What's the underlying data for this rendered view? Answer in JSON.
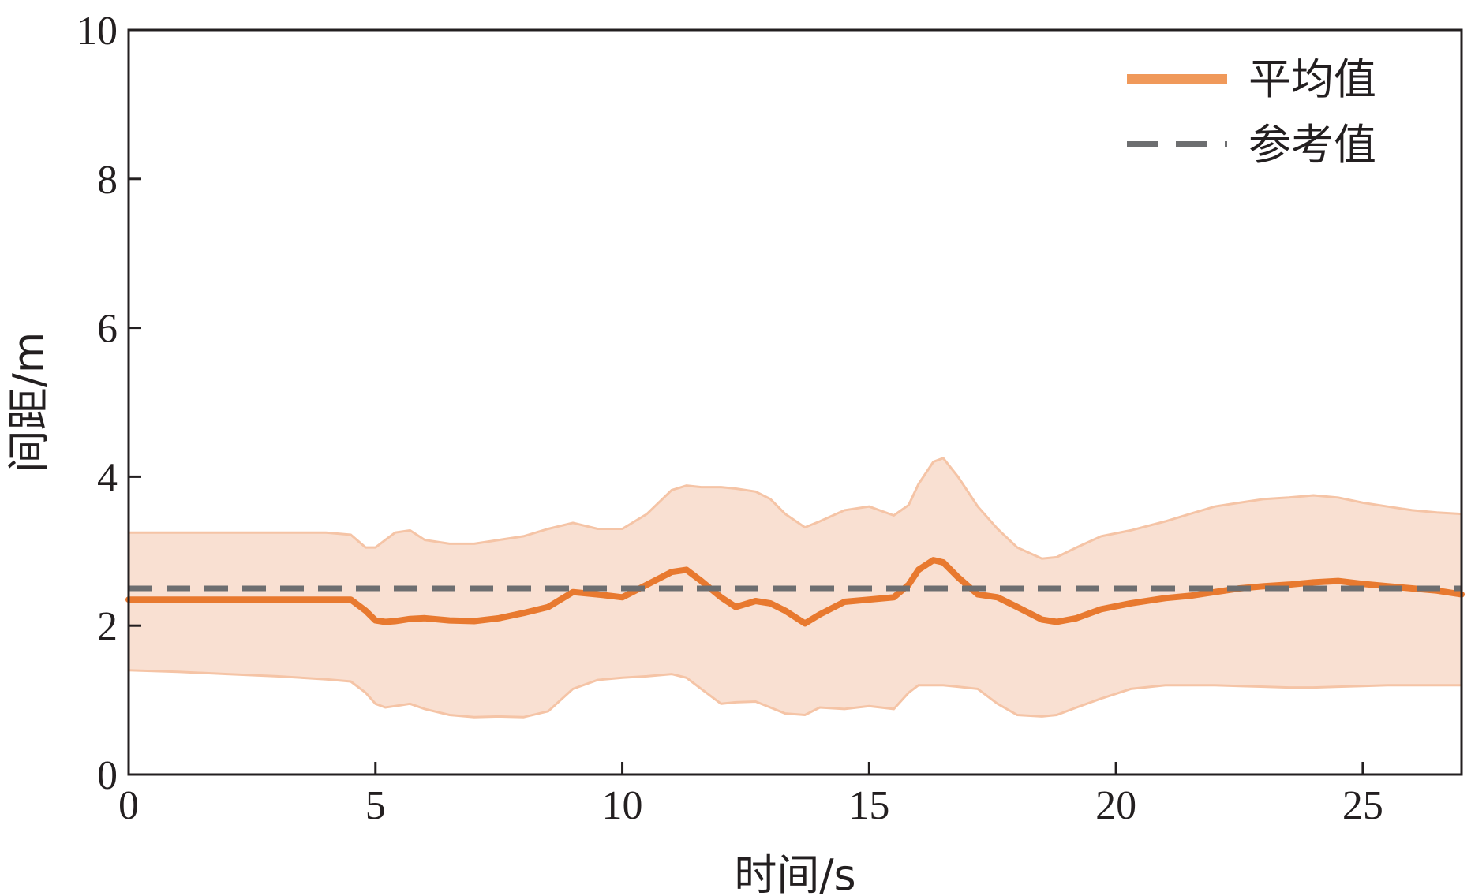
{
  "chart_data": {
    "type": "line",
    "xlabel": "时间/s",
    "ylabel": "间距/m",
    "xlim": [
      0,
      27
    ],
    "ylim": [
      0,
      10
    ],
    "xticks": [
      0,
      5,
      10,
      15,
      20,
      25
    ],
    "xtick_labels": [
      "0",
      "5",
      "10",
      "15",
      "20",
      "25"
    ],
    "yticks": [
      0,
      2,
      4,
      6,
      8,
      10
    ],
    "ytick_labels": [
      "0",
      "2",
      "4",
      "6",
      "8",
      "10"
    ],
    "grid": false,
    "legend": {
      "placement": "top-right",
      "entries": [
        {
          "label": "平均值",
          "style": "solid",
          "color": "#e8792f"
        },
        {
          "label": "参考值",
          "style": "dashed",
          "color": "#6d6e70"
        }
      ]
    },
    "series": [
      {
        "name": "平均值",
        "color": "#e8792f",
        "band_color": "#f9e0d2",
        "band_edge_color": "#f5c4a6",
        "x": [
          0,
          1,
          2,
          3,
          4,
          4.5,
          4.8,
          5.0,
          5.2,
          5.4,
          5.7,
          6.0,
          6.5,
          7.0,
          7.5,
          8.0,
          8.5,
          9.0,
          9.5,
          10.0,
          10.5,
          11.0,
          11.3,
          11.6,
          12.0,
          12.3,
          12.7,
          13.0,
          13.3,
          13.7,
          14.0,
          14.5,
          15.0,
          15.5,
          15.8,
          16.0,
          16.3,
          16.5,
          16.8,
          17.2,
          17.6,
          18.0,
          18.5,
          18.8,
          19.2,
          19.7,
          20.3,
          21.0,
          21.5,
          22.0,
          22.5,
          23.0,
          23.5,
          24.0,
          24.5,
          25.0,
          25.5,
          26.0,
          26.5,
          27.0
        ],
        "y": [
          2.35,
          2.35,
          2.35,
          2.35,
          2.35,
          2.35,
          2.2,
          2.07,
          2.05,
          2.06,
          2.09,
          2.1,
          2.07,
          2.06,
          2.1,
          2.17,
          2.25,
          2.45,
          2.42,
          2.38,
          2.55,
          2.72,
          2.75,
          2.6,
          2.38,
          2.25,
          2.33,
          2.3,
          2.2,
          2.03,
          2.15,
          2.32,
          2.35,
          2.38,
          2.55,
          2.75,
          2.88,
          2.85,
          2.65,
          2.42,
          2.38,
          2.25,
          2.08,
          2.05,
          2.1,
          2.22,
          2.3,
          2.37,
          2.4,
          2.45,
          2.5,
          2.53,
          2.55,
          2.58,
          2.6,
          2.56,
          2.53,
          2.5,
          2.47,
          2.42
        ],
        "upper": [
          3.25,
          3.25,
          3.25,
          3.25,
          3.25,
          3.22,
          3.05,
          3.05,
          3.15,
          3.25,
          3.28,
          3.15,
          3.1,
          3.1,
          3.15,
          3.2,
          3.3,
          3.38,
          3.3,
          3.3,
          3.5,
          3.82,
          3.88,
          3.86,
          3.86,
          3.84,
          3.8,
          3.7,
          3.5,
          3.32,
          3.4,
          3.55,
          3.6,
          3.48,
          3.62,
          3.9,
          4.2,
          4.25,
          4.0,
          3.6,
          3.3,
          3.05,
          2.9,
          2.92,
          3.05,
          3.2,
          3.28,
          3.4,
          3.5,
          3.6,
          3.65,
          3.7,
          3.72,
          3.75,
          3.72,
          3.65,
          3.6,
          3.55,
          3.52,
          3.5
        ],
        "lower": [
          1.4,
          1.38,
          1.35,
          1.32,
          1.28,
          1.25,
          1.1,
          0.95,
          0.9,
          0.92,
          0.95,
          0.88,
          0.8,
          0.77,
          0.78,
          0.77,
          0.85,
          1.15,
          1.27,
          1.3,
          1.32,
          1.35,
          1.3,
          1.15,
          0.95,
          0.97,
          0.98,
          0.9,
          0.82,
          0.8,
          0.9,
          0.88,
          0.92,
          0.88,
          1.1,
          1.2,
          1.2,
          1.2,
          1.18,
          1.15,
          0.95,
          0.8,
          0.78,
          0.8,
          0.9,
          1.02,
          1.15,
          1.2,
          1.2,
          1.2,
          1.19,
          1.18,
          1.17,
          1.17,
          1.18,
          1.19,
          1.2,
          1.2,
          1.2,
          1.2
        ]
      },
      {
        "name": "参考值",
        "color": "#6d6e70",
        "style": "dashed",
        "x": [
          0,
          27
        ],
        "y": [
          2.5,
          2.5
        ]
      }
    ]
  }
}
